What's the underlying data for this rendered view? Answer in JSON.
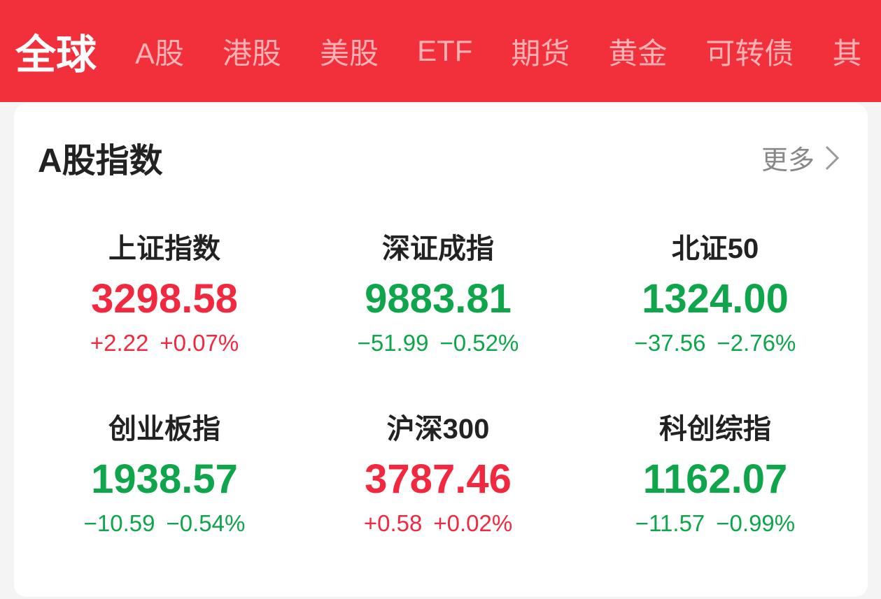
{
  "tabs": {
    "items": [
      "全球",
      "A股",
      "港股",
      "美股",
      "ETF",
      "期货",
      "黄金",
      "可转债",
      "其"
    ],
    "active": 0
  },
  "card": {
    "title": "A股指数",
    "more": "更多",
    "indices": [
      {
        "name": "上证指数",
        "value": "3298.58",
        "change": "+2.22",
        "pct": "+0.07%",
        "color": "#f2283f"
      },
      {
        "name": "深证成指",
        "value": "9883.81",
        "change": "−51.99",
        "pct": "−0.52%",
        "color": "#0fa54a"
      },
      {
        "name": "北证50",
        "value": "1324.00",
        "change": "−37.56",
        "pct": "−2.76%",
        "color": "#0fa54a"
      },
      {
        "name": "创业板指",
        "value": "1938.57",
        "change": "−10.59",
        "pct": "−0.54%",
        "color": "#0fa54a"
      },
      {
        "name": "沪深300",
        "value": "3787.46",
        "change": "+0.58",
        "pct": "+0.02%",
        "color": "#f2283f"
      },
      {
        "name": "科创综指",
        "value": "1162.07",
        "change": "−11.57",
        "pct": "−0.99%",
        "color": "#0fa54a"
      }
    ]
  }
}
